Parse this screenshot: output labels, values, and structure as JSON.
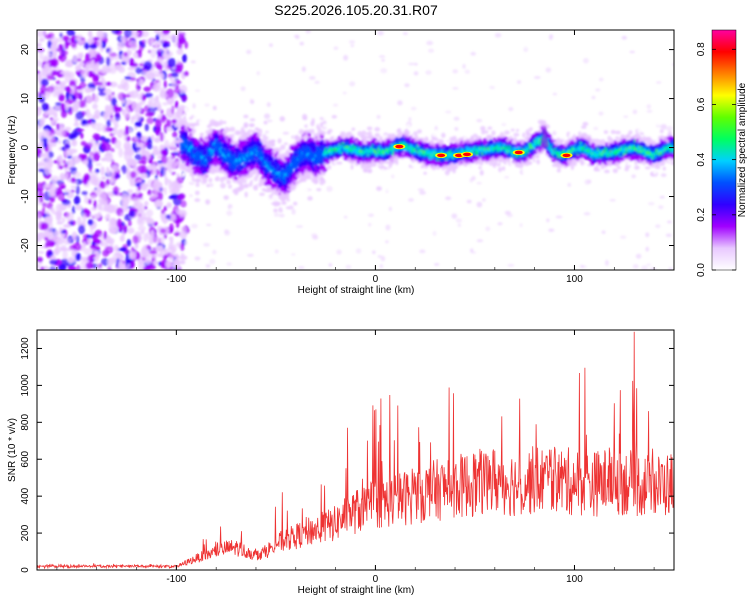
{
  "page": {
    "title": "S225.2026.105.20.31.R07"
  },
  "chart_data": [
    {
      "id": "spectrogram",
      "type": "heatmap",
      "xlabel": "Height of straight line (km)",
      "ylabel": "Frequency (Hz)",
      "xlim": [
        -170,
        150
      ],
      "ylim": [
        -25,
        24
      ],
      "xticks": [
        -100,
        0,
        100
      ],
      "yticks": [
        -20,
        -10,
        0,
        10,
        20
      ],
      "colorbar": {
        "label": "Normalized spectral amplitude",
        "range": [
          0.0,
          0.87
        ],
        "ticks": [
          0.0,
          0.2,
          0.4,
          0.6,
          0.8
        ],
        "colormap": [
          "#ffffff",
          "#e8c8ff",
          "#a000ff",
          "#3000ff",
          "#0050ff",
          "#00d0ff",
          "#00ff60",
          "#60ff00",
          "#ffff00",
          "#ff8000",
          "#ff0000",
          "#ff00a0"
        ]
      },
      "ridge": [
        [
          -95,
          0.5
        ],
        [
          -90,
          -1.5
        ],
        [
          -85,
          -2.5
        ],
        [
          -80,
          0.5
        ],
        [
          -75,
          -1.5
        ],
        [
          -70,
          -3
        ],
        [
          -65,
          -2
        ],
        [
          -60,
          -0.5
        ],
        [
          -55,
          -3
        ],
        [
          -50,
          -5
        ],
        [
          -45,
          -6
        ],
        [
          -40,
          -3
        ],
        [
          -35,
          -1
        ],
        [
          -30,
          -2
        ],
        [
          -25,
          -1
        ],
        [
          -20,
          -0.5
        ],
        [
          -15,
          0
        ],
        [
          -10,
          -0.5
        ],
        [
          -5,
          -1
        ],
        [
          0,
          -0.5
        ],
        [
          5,
          -1
        ],
        [
          10,
          0
        ],
        [
          15,
          0.5
        ],
        [
          20,
          -0.5
        ],
        [
          30,
          -1.5
        ],
        [
          40,
          -1.5
        ],
        [
          45,
          -1
        ],
        [
          55,
          -0.5
        ],
        [
          65,
          0
        ],
        [
          70,
          -1
        ],
        [
          75,
          -1
        ],
        [
          85,
          2
        ],
        [
          90,
          -1
        ],
        [
          95,
          -1.5
        ],
        [
          100,
          -0.5
        ],
        [
          105,
          0
        ],
        [
          110,
          -1.5
        ],
        [
          120,
          -1
        ],
        [
          130,
          0
        ],
        [
          140,
          -1.5
        ],
        [
          148,
          0
        ]
      ],
      "hotspots": [
        [
          12,
          0.2
        ],
        [
          33,
          -1.6
        ],
        [
          42,
          -1.6
        ],
        [
          46,
          -1.4
        ],
        [
          72,
          -1.0
        ],
        [
          96,
          -1.6
        ]
      ]
    },
    {
      "id": "snr",
      "type": "line",
      "xlabel": "Height of straight line (km)",
      "ylabel": "SNR (10 * v/v)",
      "xlim": [
        -170,
        150
      ],
      "ylim": [
        0,
        1300
      ],
      "xticks": [
        -100,
        0,
        100
      ],
      "yticks": [
        0,
        200,
        400,
        600,
        800,
        1000,
        1200
      ],
      "color": "#ee3333",
      "envelope": [
        [
          -170,
          20
        ],
        [
          -100,
          20
        ],
        [
          -95,
          45
        ],
        [
          -90,
          70
        ],
        [
          -85,
          90
        ],
        [
          -80,
          110
        ],
        [
          -75,
          130
        ],
        [
          -70,
          135
        ],
        [
          -65,
          110
        ],
        [
          -60,
          90
        ],
        [
          -55,
          110
        ],
        [
          -50,
          160
        ],
        [
          -40,
          200
        ],
        [
          -35,
          230
        ],
        [
          -30,
          240
        ],
        [
          -20,
          280
        ],
        [
          -15,
          330
        ],
        [
          -10,
          350
        ],
        [
          -5,
          380
        ],
        [
          0,
          400
        ],
        [
          10,
          420
        ],
        [
          20,
          450
        ],
        [
          30,
          480
        ],
        [
          40,
          500
        ],
        [
          50,
          520
        ],
        [
          60,
          540
        ],
        [
          70,
          520
        ],
        [
          80,
          540
        ],
        [
          90,
          540
        ],
        [
          100,
          530
        ],
        [
          110,
          520
        ],
        [
          120,
          540
        ],
        [
          130,
          520
        ],
        [
          140,
          500
        ],
        [
          150,
          520
        ]
      ]
    }
  ]
}
